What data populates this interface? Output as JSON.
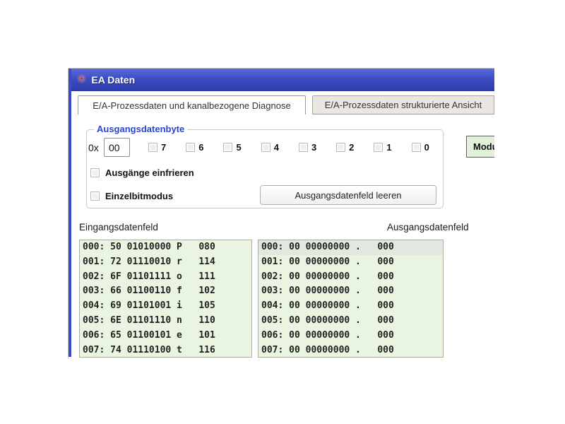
{
  "colors": {
    "titlebar_top": "#5b6bdc",
    "titlebar_mid": "#3c4cc4",
    "titlebar_bottom": "#2e3ca8",
    "window_border": "#3a4cc0",
    "list_bg": "#e9f4e1",
    "list_border": "#a9ada7",
    "selected_row_bg": "#e1e9de",
    "module_btn_bg": "#e2f2d8",
    "group_title": "#2b45c8"
  },
  "window": {
    "title": "EA Daten",
    "icon": "red-asterisk-app-icon"
  },
  "tabs": [
    {
      "label": "E/A-Prozessdaten und kanalbezogene Diagnose",
      "active": true
    },
    {
      "label": "E/A-Prozessdaten strukturierte Ansicht",
      "active": false
    }
  ],
  "output_byte_group": {
    "title": "Ausgangsdatenbyte",
    "hex_prefix": "0x",
    "value": "00",
    "bit_labels": [
      "7",
      "6",
      "5",
      "4",
      "3",
      "2",
      "1",
      "0"
    ],
    "freeze_checkbox_label": "Ausgänge einfrieren",
    "single_bit_checkbox_label": "Einzelbitmodus",
    "clear_button_label": "Ausgangsdatenfeld leeren"
  },
  "module_button_label": "Modu",
  "input_data_field": {
    "label": "Eingangsdatenfeld",
    "rows": [
      "000: 50 01010000 P   080",
      "001: 72 01110010 r   114",
      "002: 6F 01101111 o   111",
      "003: 66 01100110 f   102",
      "004: 69 01101001 i   105",
      "005: 6E 01101110 n   110",
      "006: 65 01100101 e   101",
      "007: 74 01110100 t   116"
    ]
  },
  "output_data_field": {
    "label": "Ausgangsdatenfeld",
    "selected_row_index": 0,
    "rows": [
      "000: 00 00000000 .   000",
      "001: 00 00000000 .   000",
      "002: 00 00000000 .   000",
      "003: 00 00000000 .   000",
      "004: 00 00000000 .   000",
      "005: 00 00000000 .   000",
      "006: 00 00000000 .   000",
      "007: 00 00000000 .   000"
    ]
  }
}
